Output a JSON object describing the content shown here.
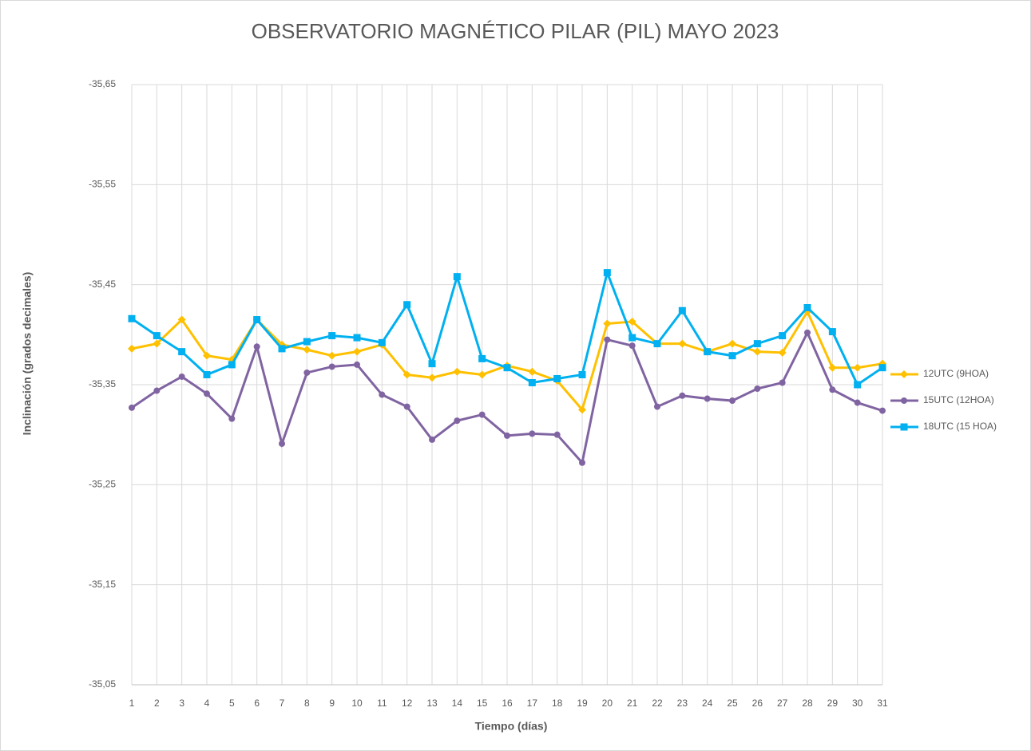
{
  "chart_data": {
    "type": "line",
    "title": "OBSERVATORIO MAGNÉTICO PILAR (PIL) MAYO 2023",
    "x_label": "Tiempo (días)",
    "y_label": "Inclinación (grados decimales)",
    "x": [
      1,
      2,
      3,
      4,
      5,
      6,
      7,
      8,
      9,
      10,
      11,
      12,
      13,
      14,
      15,
      16,
      17,
      18,
      19,
      20,
      21,
      22,
      23,
      24,
      25,
      26,
      27,
      28,
      29,
      30,
      31
    ],
    "xlim": [
      1,
      31
    ],
    "ylim": [
      -35.05,
      -35.65
    ],
    "yticks": [
      {
        "value": -35.65,
        "label": "-35,65"
      },
      {
        "value": -35.55,
        "label": "-35,55"
      },
      {
        "value": -35.45,
        "label": "-35,45"
      },
      {
        "value": -35.35,
        "label": "-35,35"
      },
      {
        "value": -35.25,
        "label": "-35,25"
      },
      {
        "value": -35.15,
        "label": "-35,15"
      },
      {
        "value": -35.05,
        "label": "-35,05"
      }
    ],
    "grid": true,
    "legend": "right",
    "series": [
      {
        "name": "12UTC (9HOA)",
        "color": "#FFC000",
        "marker": "diamond",
        "values": [
          -35.386,
          -35.391,
          -35.415,
          -35.379,
          -35.375,
          -35.415,
          -35.39,
          -35.385,
          -35.379,
          -35.383,
          -35.39,
          -35.36,
          -35.357,
          -35.363,
          -35.36,
          -35.369,
          -35.363,
          -35.354,
          -35.325,
          -35.411,
          -35.413,
          -35.391,
          -35.391,
          -35.383,
          -35.391,
          -35.383,
          -35.382,
          -35.423,
          -35.367,
          -35.367,
          -35.371
        ]
      },
      {
        "name": "15UTC (12HOA)",
        "color": "#8064A2",
        "marker": "circle",
        "values": [
          -35.327,
          -35.344,
          -35.358,
          -35.341,
          -35.316,
          -35.388,
          -35.291,
          -35.362,
          -35.368,
          -35.37,
          -35.34,
          -35.328,
          -35.295,
          -35.314,
          -35.32,
          -35.299,
          -35.301,
          -35.3,
          -35.272,
          -35.395,
          -35.389,
          -35.328,
          -35.339,
          -35.336,
          -35.334,
          -35.346,
          -35.352,
          -35.402,
          -35.345,
          -35.332,
          -35.324
        ]
      },
      {
        "name": "18UTC (15 HOA)",
        "color": "#00B0F0",
        "marker": "square",
        "values": [
          -35.416,
          -35.399,
          -35.383,
          -35.36,
          -35.37,
          -35.415,
          -35.386,
          -35.393,
          -35.399,
          -35.397,
          -35.392,
          -35.43,
          -35.371,
          -35.458,
          -35.376,
          -35.367,
          -35.352,
          -35.356,
          -35.36,
          -35.462,
          -35.397,
          -35.391,
          -35.424,
          -35.383,
          -35.379,
          -35.391,
          -35.399,
          -35.427,
          -35.403,
          -35.35,
          -35.367
        ]
      }
    ]
  }
}
